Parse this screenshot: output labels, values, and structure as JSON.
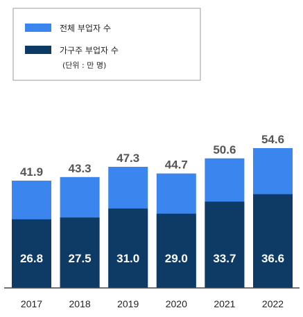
{
  "colors": {
    "total": "#3a86ee",
    "household": "#0e3a66",
    "axis": "#444444",
    "legend_border": "#999999"
  },
  "legend": {
    "items": [
      {
        "label": "전체 부업자 수",
        "color_key": "total"
      },
      {
        "label": "가구주 부업자 수",
        "color_key": "household"
      }
    ],
    "unit_note": "(단위 : 만 명)"
  },
  "chart_data": {
    "type": "bar",
    "stacking": "overlay",
    "categories": [
      "2017",
      "2018",
      "2019",
      "2020",
      "2021",
      "2022"
    ],
    "series": [
      {
        "name": "전체 부업자 수",
        "values": [
          41.9,
          43.3,
          47.3,
          44.7,
          50.6,
          54.6
        ]
      },
      {
        "name": "가구주 부업자 수",
        "values": [
          26.8,
          27.5,
          31.0,
          29.0,
          33.7,
          36.6
        ]
      }
    ],
    "ylim": [
      0,
      60
    ],
    "grid": false,
    "legend_position": "top-left"
  }
}
